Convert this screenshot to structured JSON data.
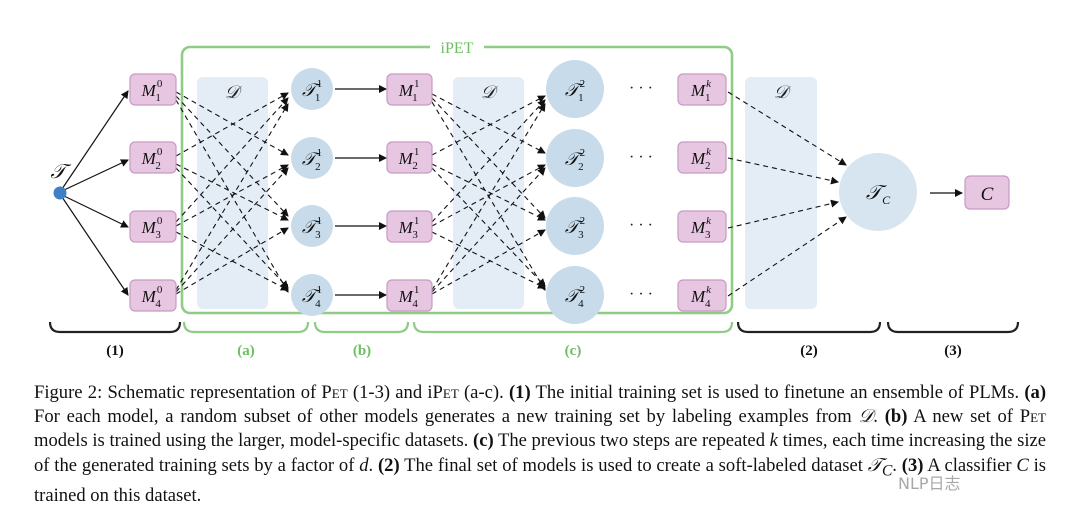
{
  "figure": {
    "ipet_label": "iPET",
    "d_label": "𝒟",
    "t_root": "𝒯",
    "dots": "· · ·",
    "stage_labels": {
      "one": "(1)",
      "a": "(a)",
      "b": "(b)",
      "c": "(c)",
      "two": "(2)",
      "three": "(3)"
    },
    "tc_label": "𝒯",
    "tc_sub": "C",
    "c_label": "C",
    "colors": {
      "model_fill": "#e7c6e2",
      "model_stroke": "#c89ac3",
      "tnode": "#c8dbea",
      "dpanel": "#e4ecf6",
      "green": "#8fcc86",
      "green_text": "#6cbf62",
      "root_dot": "#3f7fc4"
    }
  },
  "caption": {
    "p1": "Figure 2: Schematic representation of ",
    "pet": "Pet",
    "p2": " (1-3) and i",
    "p3": " (a-c). ",
    "b1": "(1)",
    "t1": " The initial training set is used to finetune an ensemble of PLMs. ",
    "ba": "(a)",
    "ta": " For each model, a random subset of other models generates a new training set by labeling examples from ",
    "dsym": "𝒟",
    "ta2": ". ",
    "bb": "(b)",
    "tb": " A new set of ",
    "tb2": " models is trained using the larger, model-specific datasets. ",
    "bc": "(c)",
    "tc": " The previous two steps are repeated ",
    "k": "k",
    "tc2": " times, each time increasing the size of the generated training sets by a factor of ",
    "d": "d",
    "tc3": ". ",
    "b2": "(2)",
    "t2": " The final set of models is used to create a soft-labeled dataset ",
    "tcsym": "𝒯",
    "tcsub": "C",
    "t2b": ". ",
    "b3": "(3)",
    "t3": " A classifier ",
    "csym": "C",
    "t3b": " is trained on this dataset."
  },
  "watermark": "NLP日志"
}
